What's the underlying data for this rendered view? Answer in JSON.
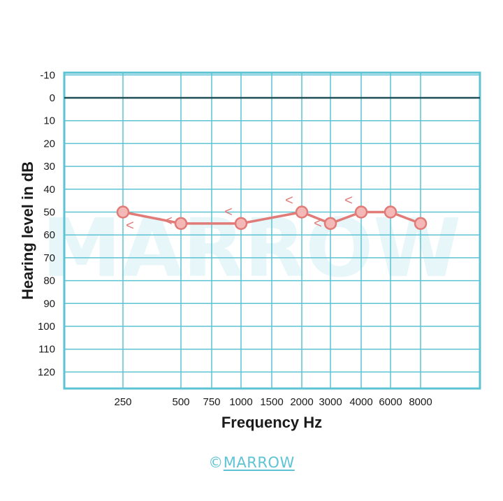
{
  "chart_data": {
    "type": "line",
    "xlabel": "Frequency Hz",
    "ylabel": "Hearing level in dB",
    "x_tick_labels": [
      "250",
      "500",
      "750",
      "1000",
      "1500",
      "2000",
      "3000",
      "4000",
      "6000",
      "8000"
    ],
    "y_tick_labels": [
      "-10",
      "0",
      "10",
      "20",
      "30",
      "40",
      "50",
      "60",
      "70",
      "80",
      "90",
      "100",
      "110",
      "120"
    ],
    "ylim": [
      -10,
      125
    ],
    "y_inverted": true,
    "grid": true,
    "reference_line_db": 0,
    "series": [
      {
        "marker": "circle",
        "points": [
          {
            "freq": "250",
            "db": 50
          },
          {
            "freq": "500",
            "db": 55
          },
          {
            "freq": "1000",
            "db": 55
          },
          {
            "freq": "2000",
            "db": 50
          },
          {
            "freq": "3000",
            "db": 55
          },
          {
            "freq": "4000",
            "db": 50
          },
          {
            "freq": "6000",
            "db": 50
          },
          {
            "freq": "8000",
            "db": 55
          }
        ]
      }
    ],
    "bone_conduction_symbols": [
      {
        "freq": "250",
        "db": 56,
        "glyph": "<"
      },
      {
        "freq": "500",
        "db": 54,
        "glyph": "<"
      },
      {
        "freq": "1000",
        "db": 50,
        "glyph": "<"
      },
      {
        "freq": "2000",
        "db": 45,
        "glyph": "<"
      },
      {
        "freq": "3000",
        "db": 55,
        "glyph": "<"
      },
      {
        "freq": "4000",
        "db": 45,
        "glyph": "<"
      }
    ],
    "colors": {
      "grid": "#5cc3d3",
      "series": "#e07b78",
      "marker_fill": "#f4b8b6",
      "zero_line": "#1f4e57"
    }
  },
  "watermark": "MARROW",
  "brand": {
    "prefix": "©",
    "name": "MARROW"
  }
}
